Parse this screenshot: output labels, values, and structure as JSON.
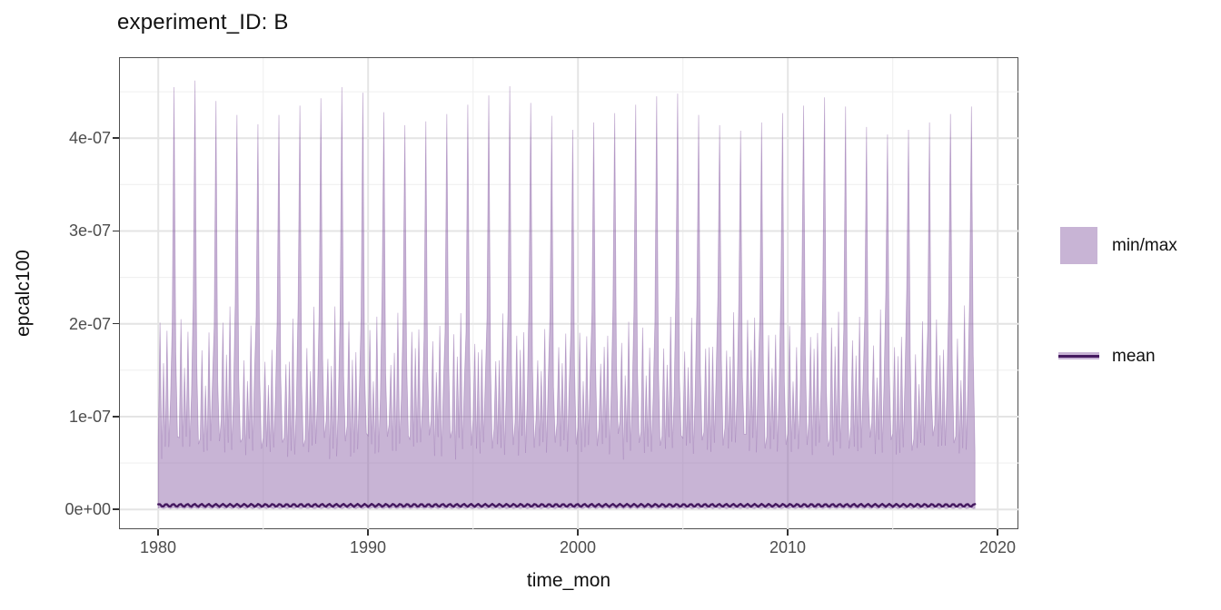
{
  "chart_data": {
    "type": "area",
    "title": "experiment_ID: B",
    "xlabel": "time_mon",
    "ylabel": "epcalc100",
    "x_ticks": [
      1980,
      1990,
      2000,
      2010,
      2020
    ],
    "x_minor_ticks": [
      1985,
      1995,
      2005,
      2015
    ],
    "y_tick_labels": [
      "0e+00",
      "1e-07",
      "2e-07",
      "3e-07",
      "4e-07"
    ],
    "y_tick_values_e07": [
      0,
      1,
      2,
      3,
      4
    ],
    "y_minor_values_e07": [
      0.5,
      1.5,
      2.5,
      3.5,
      4.5
    ],
    "value_unit": "1e-07",
    "xlim": [
      1978.1,
      2020.9
    ],
    "ylim_e07": [
      -0.21,
      4.87
    ],
    "grid": "major+minor",
    "start_year": 1980,
    "end_year": 2018,
    "months_per_year": 12,
    "peak_month_index": 9,
    "monthly_max_template_e07": [
      0.85,
      1.8,
      0.62,
      1.55,
      0.7,
      1.95,
      0.65,
      1.3,
      2.1,
      4.35,
      1.5,
      0.72
    ],
    "annual_peak_max_e07": [
      4.55,
      4.62,
      4.4,
      4.25,
      4.15,
      4.25,
      4.35,
      4.43,
      4.55,
      4.49,
      4.28,
      4.14,
      4.18,
      4.26,
      4.36,
      4.46,
      4.56,
      4.38,
      4.24,
      4.09,
      4.17,
      4.27,
      4.36,
      4.45,
      4.48,
      4.25,
      4.14,
      4.08,
      4.17,
      4.27,
      4.35,
      4.44,
      4.34,
      4.12,
      4.04,
      4.09,
      4.17,
      4.26,
      4.34
    ],
    "ribbon_min_e07": 0.015,
    "mean_e07": 0.044,
    "mean_wiggle_amplitude_e07": 0.015,
    "legend": [
      {
        "label": "min/max",
        "swatch": "fill",
        "color": "rgba(138,95,165,0.47)"
      },
      {
        "label": "mean",
        "swatch": "line",
        "color": "#451a60"
      }
    ],
    "colors": {
      "ribbon_fill_base": "#8a5fa5",
      "ribbon_fill_opacity": 0.47,
      "mean_line": "#451a60",
      "grid_major": "#e4e4e4",
      "grid_minor": "#f0f0f0",
      "panel_border": "#4f4f4f",
      "tick_text": "#4d4d4d",
      "axis_text": "#111111",
      "background": "#ffffff"
    }
  }
}
